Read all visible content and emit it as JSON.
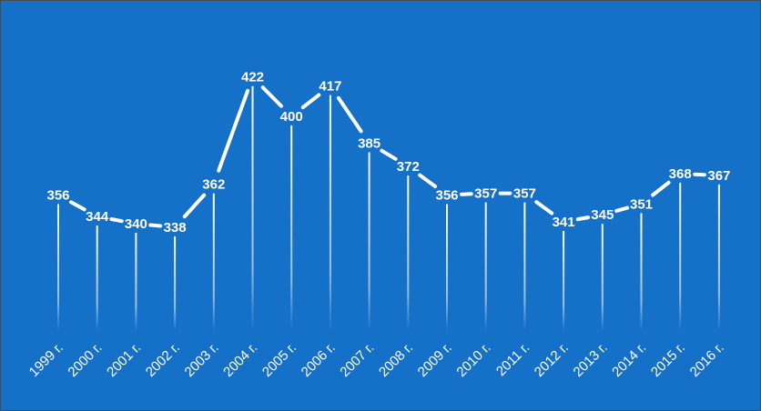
{
  "chart_data": {
    "type": "line",
    "categories": [
      "1999 г.",
      "2000 г.",
      "2001 г.",
      "2002 г.",
      "2003 г.",
      "2004 г.",
      "2005 г.",
      "2006 г.",
      "2007 г.",
      "2008 г.",
      "2009 г.",
      "2010 г.",
      "2011 г.",
      "2012 г.",
      "2013 г.",
      "2014 г.",
      "2015 г.",
      "2016 г."
    ],
    "series": [
      {
        "values": [
          356,
          344,
          340,
          338,
          362,
          422,
          400,
          417,
          385,
          372,
          356,
          357,
          357,
          341,
          345,
          351,
          368,
          367
        ]
      }
    ],
    "title": "",
    "xlabel": "",
    "ylabel": "",
    "ylim": [
      280,
      430
    ],
    "grid": false,
    "legend": "none",
    "data_labels": true,
    "drop_lines": true,
    "colors": {
      "background": "#1570c8",
      "line": "#ffffff",
      "text": "#ffffff"
    }
  }
}
